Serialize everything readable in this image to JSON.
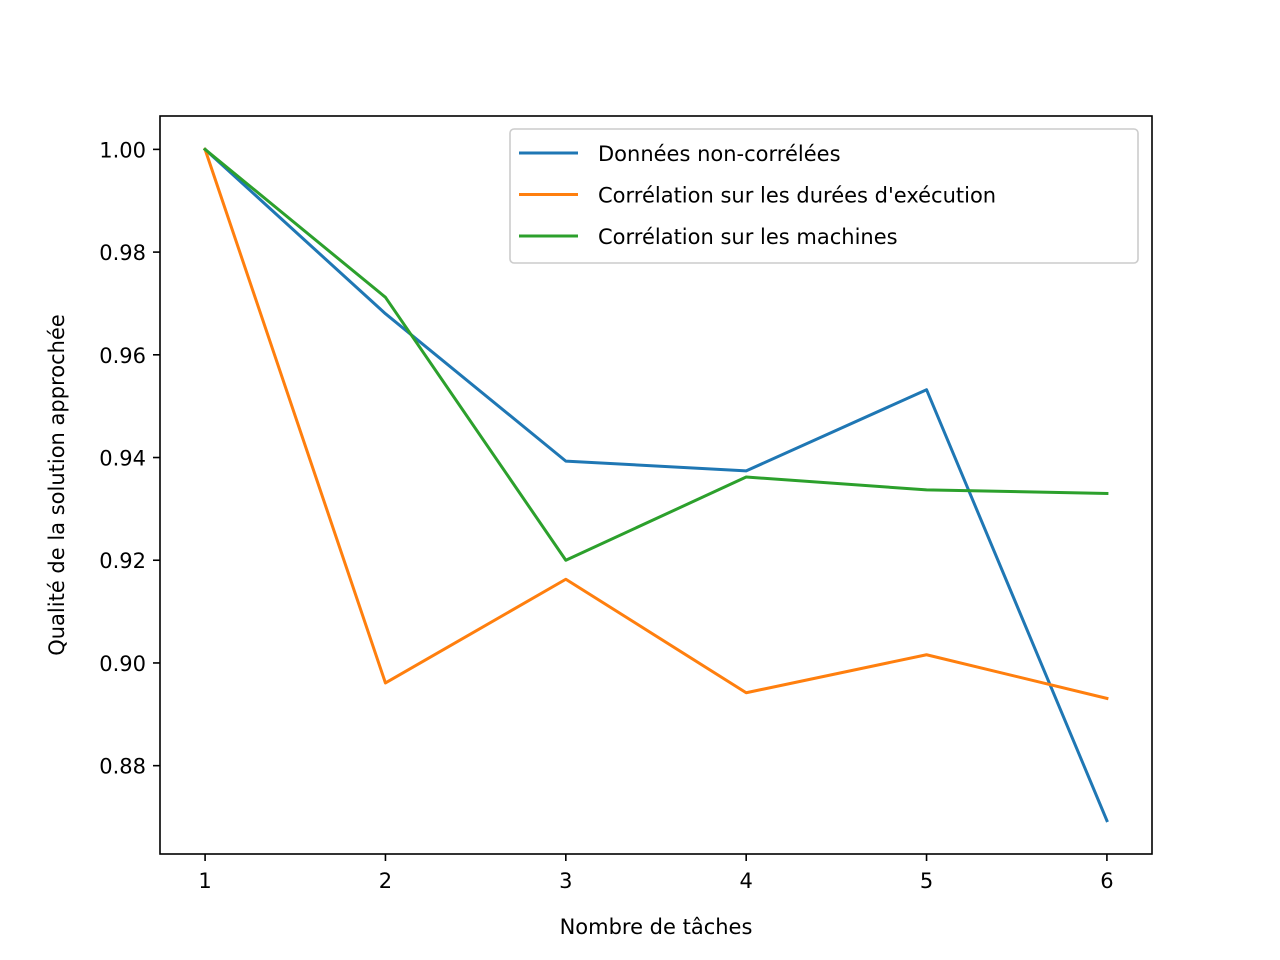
{
  "chart_data": {
    "type": "line",
    "title": "",
    "xlabel": "Nombre de tâches",
    "ylabel": "Qualité de la solution approchée",
    "x": [
      1,
      2,
      3,
      4,
      5,
      6
    ],
    "xlim": [
      0.75,
      6.25
    ],
    "ylim": [
      0.8628,
      1.0065
    ],
    "x_ticks": [
      1,
      2,
      3,
      4,
      5,
      6
    ],
    "x_tick_labels": [
      "1",
      "2",
      "3",
      "4",
      "5",
      "6"
    ],
    "y_ticks": [
      0.88,
      0.9,
      0.92,
      0.94,
      0.96,
      0.98,
      1.0
    ],
    "y_tick_labels": [
      "0.88",
      "0.90",
      "0.92",
      "0.94",
      "0.96",
      "0.98",
      "1.00"
    ],
    "grid": false,
    "legend_position": "top-right",
    "series": [
      {
        "name": "Données non-corrélées",
        "color": "#1f77b4",
        "values": [
          1.0,
          0.968,
          0.9393,
          0.9374,
          0.9532,
          0.8693
        ]
      },
      {
        "name": "Corrélation sur les durées d'exécution",
        "color": "#ff7f0e",
        "values": [
          1.0,
          0.8961,
          0.9163,
          0.8942,
          0.9016,
          0.8931
        ]
      },
      {
        "name": "Corrélation sur les machines",
        "color": "#2ca02c",
        "values": [
          1.0,
          0.9712,
          0.92,
          0.9362,
          0.9337,
          0.933
        ]
      }
    ]
  }
}
